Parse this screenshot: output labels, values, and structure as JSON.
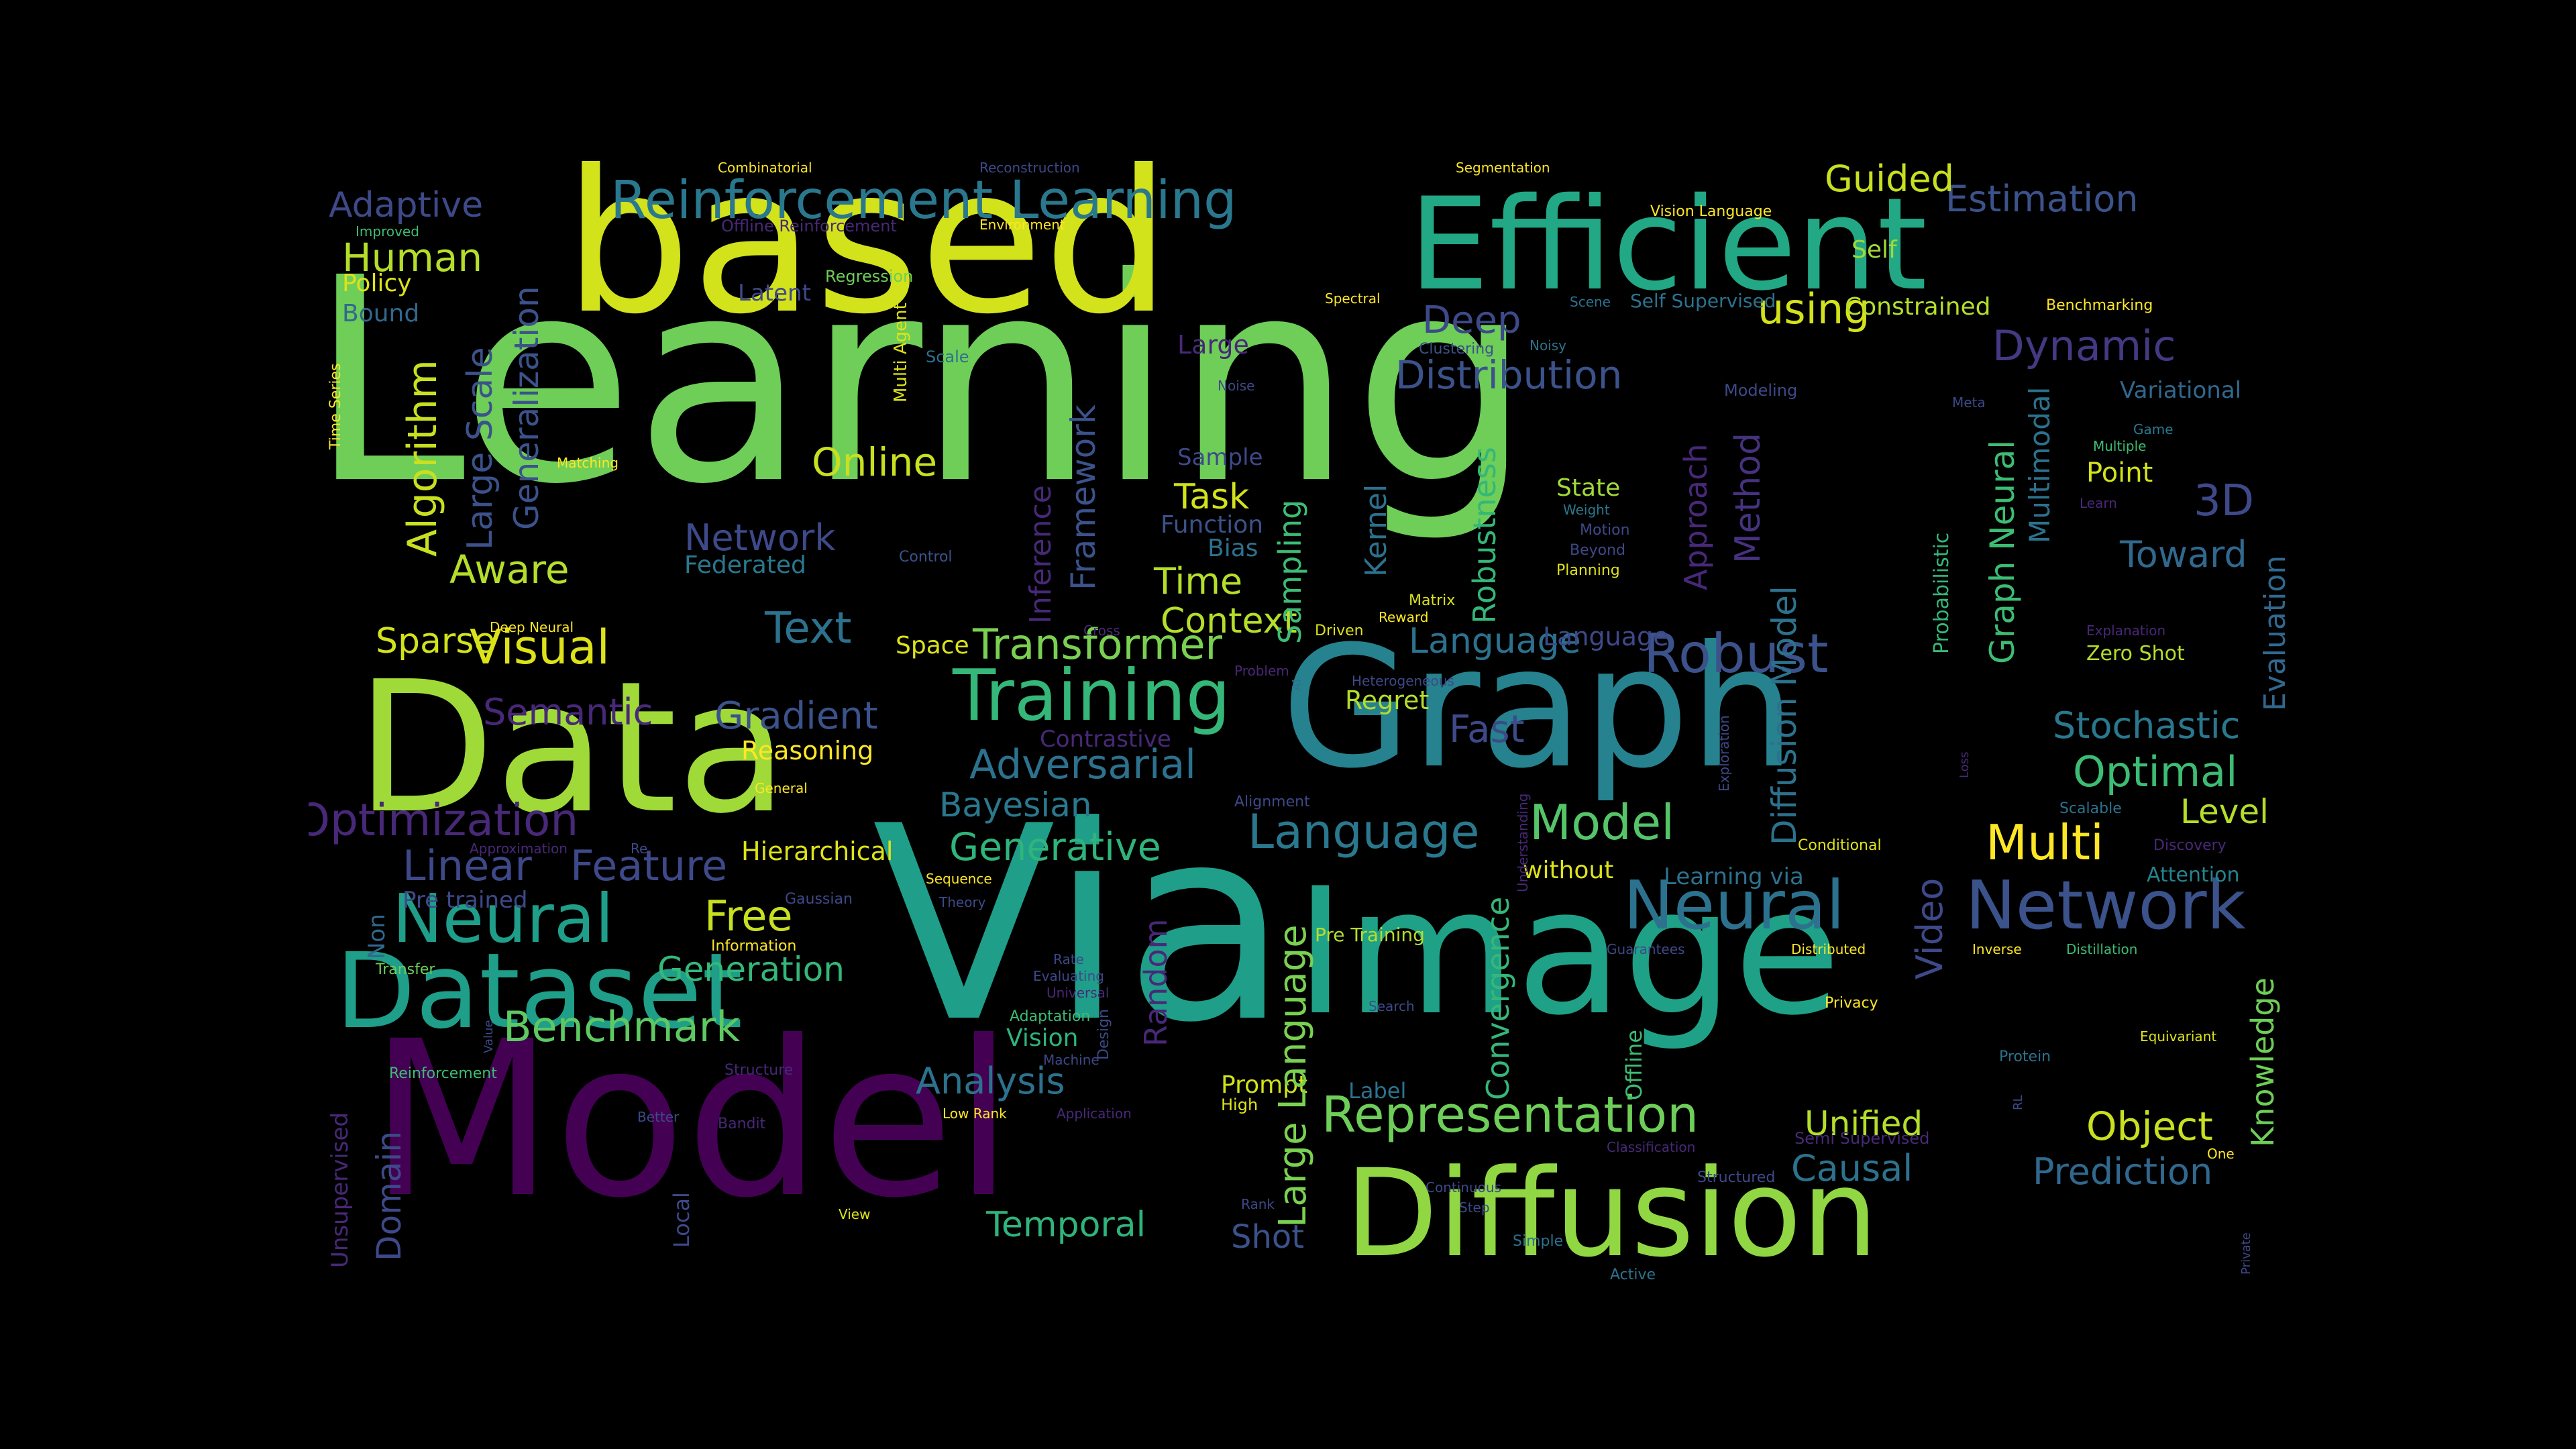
{
  "background": "#000000",
  "palette": {
    "d1": "#440154",
    "d2": "#482878",
    "d3": "#3e4989",
    "d4": "#31688e",
    "d5": "#26828e",
    "d6": "#1f9e89",
    "d7": "#35b779",
    "d8": "#6ece58",
    "d9": "#b5de2b",
    "d10": "#fde725"
  },
  "words": [
    {
      "text": "Learning",
      "c": "#6ece58"
    },
    {
      "text": "based",
      "c": "#d2e21b"
    },
    {
      "text": "Via",
      "c": "#1f9e89"
    },
    {
      "text": "Model",
      "c": "#440154"
    },
    {
      "text": "Graph",
      "c": "#26828e"
    },
    {
      "text": "Data",
      "c": "#a0da39"
    },
    {
      "text": "Image",
      "c": "#1fa187"
    },
    {
      "text": "Efficient",
      "c": "#22a884"
    },
    {
      "text": "Diffusion",
      "c": "#90d743"
    },
    {
      "text": "Dataset",
      "c": "#1f9e89"
    },
    {
      "text": "Reinforcement Learning",
      "c": "#2a788e"
    },
    {
      "text": "Neural",
      "c": "#2c728e"
    },
    {
      "text": "Network",
      "c": "#3b528b"
    },
    {
      "text": "Training",
      "c": "#35b779"
    },
    {
      "text": "Neural",
      "c": "#1f9e89"
    },
    {
      "text": "Representation",
      "c": "#6ece58"
    },
    {
      "text": "Transformer",
      "c": "#7ad151"
    },
    {
      "text": "Language",
      "c": "#2a788e"
    },
    {
      "text": "Model",
      "c": "#54c568"
    },
    {
      "text": "Robust",
      "c": "#3b528b"
    },
    {
      "text": "Adversarial",
      "c": "#2c728e"
    },
    {
      "text": "Generative",
      "c": "#2fb47c"
    },
    {
      "text": "Optimization",
      "c": "#482878"
    },
    {
      "text": "Visual",
      "c": "#dde318"
    },
    {
      "text": "Text",
      "c": "#2c728e"
    },
    {
      "text": "Benchmark",
      "c": "#5ec962"
    },
    {
      "text": "Human",
      "c": "#b5de2b"
    },
    {
      "text": "Estimation",
      "c": "#3b528b"
    },
    {
      "text": "Dynamic",
      "c": "#443983"
    },
    {
      "text": "Deep",
      "c": "#3e4989"
    },
    {
      "text": "Distribution",
      "c": "#3b528b"
    },
    {
      "text": "Optimal",
      "c": "#3dbc74"
    },
    {
      "text": "Stochastic",
      "c": "#2a788e"
    },
    {
      "text": "Multi",
      "c": "#fde725"
    },
    {
      "text": "Object",
      "c": "#c8e020"
    },
    {
      "text": "Prediction",
      "c": "#31688e"
    },
    {
      "text": "Causal",
      "c": "#2c728e"
    },
    {
      "text": "Unified",
      "c": "#b5de2b"
    },
    {
      "text": "Temporal",
      "c": "#2fb47c"
    },
    {
      "text": "Analysis",
      "c": "#2c728e"
    },
    {
      "text": "Generation",
      "c": "#35b779"
    },
    {
      "text": "Free",
      "c": "#c8e020"
    },
    {
      "text": "Linear",
      "c": "#3e4989"
    },
    {
      "text": "Feature",
      "c": "#3e4989"
    },
    {
      "text": "Gradient",
      "c": "#3b528b"
    },
    {
      "text": "Semantic",
      "c": "#482878"
    },
    {
      "text": "Sparse",
      "c": "#d2e21b"
    },
    {
      "text": "Aware",
      "c": "#b5de2b"
    },
    {
      "text": "Network",
      "c": "#3e4989"
    },
    {
      "text": "Online",
      "c": "#c8e020"
    },
    {
      "text": "Task",
      "c": "#d2e21b"
    },
    {
      "text": "Time",
      "c": "#b5de2b"
    },
    {
      "text": "Context",
      "c": "#b5de2b"
    },
    {
      "text": "using",
      "c": "#d2e21b"
    },
    {
      "text": "Guided",
      "c": "#c8e020"
    },
    {
      "text": "Self",
      "c": "#a0da39"
    },
    {
      "text": "Constrained",
      "c": "#b5de2b"
    },
    {
      "text": "Bayesian",
      "c": "#2a788e"
    },
    {
      "text": "Hierarchical",
      "c": "#dde318"
    },
    {
      "text": "Reasoning",
      "c": "#fde725"
    },
    {
      "text": "Language",
      "c": "#2c728e"
    },
    {
      "text": "Fast",
      "c": "#3e4989"
    },
    {
      "text": "Regret",
      "c": "#b5de2b"
    },
    {
      "text": "Level",
      "c": "#b5de2b"
    },
    {
      "text": "Toward",
      "c": "#31688e"
    },
    {
      "text": "3D",
      "c": "#3e4989"
    },
    {
      "text": "Point",
      "c": "#d2e21b"
    },
    {
      "text": "Zero Shot",
      "c": "#b5de2b"
    },
    {
      "text": "Variational",
      "c": "#31688e"
    },
    {
      "text": "Adaptive",
      "c": "#3e4989"
    },
    {
      "text": "Policy",
      "c": "#dde318"
    },
    {
      "text": "Bound",
      "c": "#31688e"
    },
    {
      "text": "Latent",
      "c": "#3e4989"
    },
    {
      "text": "Large",
      "c": "#482878"
    },
    {
      "text": "Federated",
      "c": "#2a788e"
    },
    {
      "text": "Sample",
      "c": "#3e4989"
    },
    {
      "text": "Function",
      "c": "#3b528b"
    },
    {
      "text": "Bias",
      "c": "#2c728e"
    },
    {
      "text": "State",
      "c": "#a0da39"
    },
    {
      "text": "Space",
      "c": "#dde318"
    },
    {
      "text": "Contrastive",
      "c": "#482878"
    },
    {
      "text": "Pre trained",
      "c": "#3e4989"
    },
    {
      "text": "Language",
      "c": "#3e4989"
    },
    {
      "text": "Learning via",
      "c": "#2c728e"
    },
    {
      "text": "without",
      "c": "#dde318"
    },
    {
      "text": "Attention",
      "c": "#26828e"
    },
    {
      "text": "Prompt",
      "c": "#d2e21b"
    },
    {
      "text": "Label",
      "c": "#2c728e"
    },
    {
      "text": "Vision",
      "c": "#2fb47c"
    },
    {
      "text": "Shot",
      "c": "#3b528b"
    },
    {
      "text": "Pre Training",
      "c": "#b5de2b"
    },
    {
      "text": "Algorithm",
      "c": "#c8e020"
    },
    {
      "text": "Large Scale",
      "c": "#3b528b"
    },
    {
      "text": "Generalization",
      "c": "#3b528b"
    },
    {
      "text": "Framework",
      "c": "#3b528b"
    },
    {
      "text": "Inference",
      "c": "#482878"
    },
    {
      "text": "Sampling",
      "c": "#3dbc74"
    },
    {
      "text": "Kernel",
      "c": "#2c728e"
    },
    {
      "text": "Robustness",
      "c": "#35b779"
    },
    {
      "text": "Approach",
      "c": "#482878"
    },
    {
      "text": "Method",
      "c": "#46327e"
    },
    {
      "text": "Diffusion Model",
      "c": "#2c728e"
    },
    {
      "text": "Graph Neural",
      "c": "#3dbc74"
    },
    {
      "text": "Multimodal",
      "c": "#2c728e"
    },
    {
      "text": "Probabilistic",
      "c": "#35b779"
    },
    {
      "text": "Evaluation",
      "c": "#31688e"
    },
    {
      "text": "Video",
      "c": "#3e4989"
    },
    {
      "text": "Knowledge",
      "c": "#6ece58"
    },
    {
      "text": "Large Language",
      "c": "#7ad151"
    },
    {
      "text": "Convergence",
      "c": "#35b779"
    },
    {
      "text": "Random",
      "c": "#482878"
    },
    {
      "text": "Domain",
      "c": "#3e4989"
    },
    {
      "text": "Non",
      "c": "#31688e"
    },
    {
      "text": "Unsupervised",
      "c": "#482878"
    },
    {
      "text": "Local",
      "c": "#3e4989"
    },
    {
      "text": "Offline",
      "c": "#3dbc74"
    },
    {
      "text": "Time Series",
      "c": "#fde725"
    },
    {
      "text": "Combinatorial",
      "c": "#fde725"
    },
    {
      "text": "Improved",
      "c": "#3dbc74"
    },
    {
      "text": "Offline Reinforcement",
      "c": "#482878"
    },
    {
      "text": "Reconstruction",
      "c": "#3e4989"
    },
    {
      "text": "Environment",
      "c": "#fde725"
    },
    {
      "text": "Regression",
      "c": "#6ece58"
    },
    {
      "text": "Segmentation",
      "c": "#fde725"
    },
    {
      "text": "Vision Language",
      "c": "#fde725"
    },
    {
      "text": "Spectral",
      "c": "#fde725"
    },
    {
      "text": "Scene",
      "c": "#2c728e"
    },
    {
      "text": "Self Supervised",
      "c": "#2c728e"
    },
    {
      "text": "Benchmarking",
      "c": "#fde725"
    },
    {
      "text": "Multi Agent",
      "c": "#dde318"
    },
    {
      "text": "Scale",
      "c": "#2c728e"
    },
    {
      "text": "Clustering",
      "c": "#3b528b"
    },
    {
      "text": "Noisy",
      "c": "#2c728e"
    },
    {
      "text": "Noise",
      "c": "#3e4989"
    },
    {
      "text": "Modeling",
      "c": "#3e4989"
    },
    {
      "text": "Meta",
      "c": "#3e4989"
    },
    {
      "text": "Game",
      "c": "#2a788e"
    },
    {
      "text": "Multiple",
      "c": "#3dbc74"
    },
    {
      "text": "Learn",
      "c": "#482878"
    },
    {
      "text": "Matching",
      "c": "#fde725"
    },
    {
      "text": "Weight",
      "c": "#2a788e"
    },
    {
      "text": "Motion",
      "c": "#3e4989"
    },
    {
      "text": "Beyond",
      "c": "#3e4989"
    },
    {
      "text": "Planning",
      "c": "#dde318"
    },
    {
      "text": "Control",
      "c": "#3b528b"
    },
    {
      "text": "Matrix",
      "c": "#dde318"
    },
    {
      "text": "Reward",
      "c": "#fde725"
    },
    {
      "text": "Driven",
      "c": "#dde318"
    },
    {
      "text": "Deep Neural",
      "c": "#fde725"
    },
    {
      "text": "Cross",
      "c": "#482878"
    },
    {
      "text": "Problem",
      "c": "#482878"
    },
    {
      "text": "Heterogeneous",
      "c": "#3e4989"
    },
    {
      "text": "AI",
      "c": "#2c728e"
    },
    {
      "text": "Explanation",
      "c": "#482878"
    },
    {
      "text": "Exploration",
      "c": "#3e4989"
    },
    {
      "text": "Loss",
      "c": "#482878"
    },
    {
      "text": "Scalable",
      "c": "#2c728e"
    },
    {
      "text": "Discovery",
      "c": "#482878"
    },
    {
      "text": "Conditional",
      "c": "#dde318"
    },
    {
      "text": "General",
      "c": "#fde725"
    },
    {
      "text": "Alignment",
      "c": "#3e4989"
    },
    {
      "text": "Understanding",
      "c": "#482878"
    },
    {
      "text": "Approximation",
      "c": "#482878"
    },
    {
      "text": "Re",
      "c": "#3e4989"
    },
    {
      "text": "Sequence",
      "c": "#fde725"
    },
    {
      "text": "Theory",
      "c": "#3e4989"
    },
    {
      "text": "Gaussian",
      "c": "#3e4989"
    },
    {
      "text": "Information",
      "c": "#fde725"
    },
    {
      "text": "Design",
      "c": "#3e4989"
    },
    {
      "text": "Rate",
      "c": "#3e4989"
    },
    {
      "text": "Evaluating",
      "c": "#3e4989"
    },
    {
      "text": "Universal",
      "c": "#482878"
    },
    {
      "text": "Transfer",
      "c": "#6ece58"
    },
    {
      "text": "Guarantees",
      "c": "#3e4989"
    },
    {
      "text": "Distributed",
      "c": "#fde725"
    },
    {
      "text": "Inverse",
      "c": "#fde725"
    },
    {
      "text": "Distillation",
      "c": "#3dbc74"
    },
    {
      "text": "Privacy",
      "c": "#fde725"
    },
    {
      "text": "Equivariant",
      "c": "#dde318"
    },
    {
      "text": "Search",
      "c": "#3e4989"
    },
    {
      "text": "Adaptation",
      "c": "#3dbc74"
    },
    {
      "text": "Machine",
      "c": "#3e4989"
    },
    {
      "text": "Protein",
      "c": "#2c728e"
    },
    {
      "text": "Value",
      "c": "#3e4989"
    },
    {
      "text": "Structure",
      "c": "#482878"
    },
    {
      "text": "Reinforcement",
      "c": "#3dbc74"
    },
    {
      "text": "Better",
      "c": "#3e4989"
    },
    {
      "text": "Bandit",
      "c": "#482878"
    },
    {
      "text": "Low Rank",
      "c": "#fde725"
    },
    {
      "text": "Application",
      "c": "#482878"
    },
    {
      "text": "High",
      "c": "#dde318"
    },
    {
      "text": "Semi Supervised",
      "c": "#482878"
    },
    {
      "text": "Classification",
      "c": "#482878"
    },
    {
      "text": "RL",
      "c": "#3e4989"
    },
    {
      "text": "One",
      "c": "#fde725"
    },
    {
      "text": "Continuous",
      "c": "#3e4989"
    },
    {
      "text": "Structured",
      "c": "#3e4989"
    },
    {
      "text": "Step",
      "c": "#3e4989"
    },
    {
      "text": "Rank",
      "c": "#3e4989"
    },
    {
      "text": "View",
      "c": "#dde318"
    },
    {
      "text": "Simple",
      "c": "#2c728e"
    },
    {
      "text": "Active",
      "c": "#2c728e"
    },
    {
      "text": "Private",
      "c": "#3e4989"
    }
  ]
}
